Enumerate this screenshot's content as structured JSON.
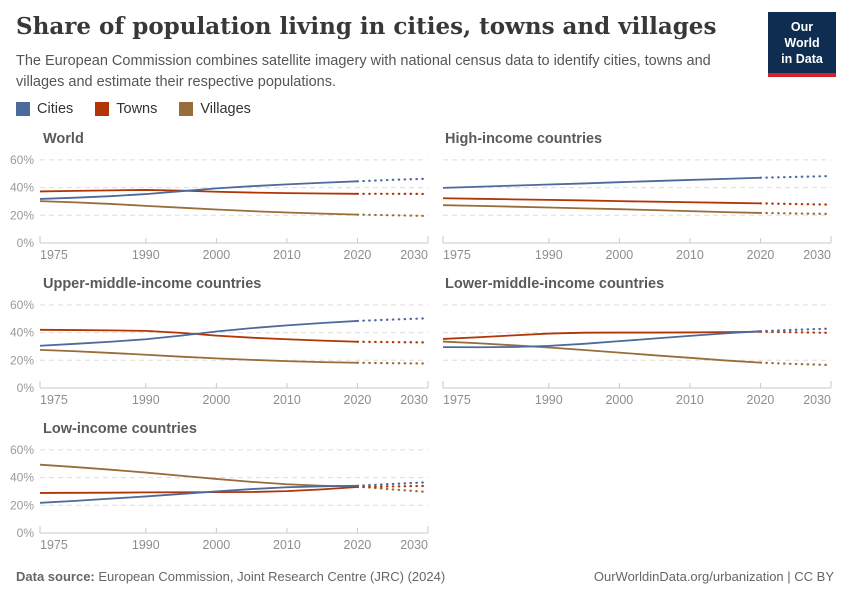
{
  "header": {
    "title": "Share of population living in cities, towns and villages",
    "subtitle": "The European Commission combines satellite imagery with national census data to identify cities, towns and villages and estimate their respective populations.",
    "logo": {
      "line1": "Our World",
      "line2": "in Data",
      "bg_color": "#0E2D51",
      "accent_color": "#D0232E"
    }
  },
  "legend": {
    "position": "top",
    "items": [
      {
        "label": "Cities",
        "color": "#4C6A9C"
      },
      {
        "label": "Towns",
        "color": "#B13507"
      },
      {
        "label": "Villages",
        "color": "#996D39"
      }
    ]
  },
  "chart_data": [
    {
      "type": "line",
      "title": "World",
      "x": [
        1975,
        1980,
        1985,
        1990,
        1995,
        2000,
        2005,
        2010,
        2015,
        2020
      ],
      "projection_x": [
        2020,
        2025,
        2030
      ],
      "x_range": [
        1975,
        2030
      ],
      "y_range": [
        0,
        65
      ],
      "grid": "dashed",
      "x_tick_labels": [
        "1975",
        "1990",
        "2000",
        "2010",
        "2020",
        "2030"
      ],
      "x_ticks": [
        1975,
        1990,
        2000,
        2010,
        2020,
        2030
      ],
      "y_ticks": [
        0,
        20,
        40,
        60
      ],
      "y_tick_labels": [
        "0%",
        "20%",
        "40%",
        "60%"
      ],
      "ylabel": "",
      "xlabel": "",
      "series": [
        {
          "name": "Cities",
          "color": "#4C6A9C",
          "values": [
            31.8,
            32.7,
            33.8,
            35.3,
            37.4,
            39.4,
            41.0,
            42.3,
            43.5,
            44.5
          ],
          "projection": [
            44.5,
            45.6,
            46.4
          ]
        },
        {
          "name": "Towns",
          "color": "#B13507",
          "values": [
            37.2,
            37.6,
            38.0,
            38.3,
            37.8,
            37.0,
            36.4,
            36.0,
            35.7,
            35.5
          ],
          "projection": [
            35.5,
            35.5,
            35.4
          ]
        },
        {
          "name": "Villages",
          "color": "#996D39",
          "values": [
            30.2,
            29.3,
            28.2,
            26.8,
            25.5,
            24.2,
            23.0,
            22.0,
            21.2,
            20.5
          ],
          "projection": [
            20.5,
            20.0,
            19.5
          ]
        }
      ]
    },
    {
      "type": "line",
      "title": "High-income countries",
      "x": [
        1975,
        1980,
        1985,
        1990,
        1995,
        2000,
        2005,
        2010,
        2015,
        2020
      ],
      "projection_x": [
        2020,
        2025,
        2030
      ],
      "x_range": [
        1975,
        2030
      ],
      "y_range": [
        0,
        65
      ],
      "grid": "dashed",
      "x_tick_labels": [
        "1975",
        "1990",
        "2000",
        "2010",
        "2020",
        "2030"
      ],
      "x_ticks": [
        1975,
        1990,
        2000,
        2010,
        2020,
        2030
      ],
      "y_ticks": [
        0,
        20,
        40,
        60
      ],
      "y_tick_labels": [
        "0%",
        "20%",
        "40%",
        "60%"
      ],
      "ylabel": "",
      "xlabel": "",
      "series": [
        {
          "name": "Cities",
          "color": "#4C6A9C",
          "values": [
            39.8,
            40.6,
            41.4,
            42.2,
            43.0,
            43.9,
            44.7,
            45.5,
            46.3,
            47.1
          ],
          "projection": [
            47.1,
            47.7,
            48.3
          ]
        },
        {
          "name": "Towns",
          "color": "#B13507",
          "values": [
            32.3,
            31.9,
            31.5,
            31.1,
            30.7,
            30.2,
            29.8,
            29.4,
            29.0,
            28.6
          ],
          "projection": [
            28.6,
            28.1,
            27.7
          ]
        },
        {
          "name": "Villages",
          "color": "#996D39",
          "values": [
            27.3,
            26.8,
            26.2,
            25.6,
            25.0,
            24.4,
            23.7,
            23.0,
            22.3,
            21.7
          ],
          "projection": [
            21.7,
            21.3,
            21.0
          ]
        }
      ]
    },
    {
      "type": "line",
      "title": "Upper-middle-income countries",
      "x": [
        1975,
        1980,
        1985,
        1990,
        1995,
        2000,
        2005,
        2010,
        2015,
        2020
      ],
      "projection_x": [
        2020,
        2025,
        2030
      ],
      "x_range": [
        1975,
        2030
      ],
      "y_range": [
        0,
        65
      ],
      "grid": "dashed",
      "x_tick_labels": [
        "1975",
        "1990",
        "2000",
        "2010",
        "2020",
        "2030"
      ],
      "x_ticks": [
        1975,
        1990,
        2000,
        2010,
        2020,
        2030
      ],
      "y_ticks": [
        0,
        20,
        40,
        60
      ],
      "y_tick_labels": [
        "0%",
        "20%",
        "40%",
        "60%"
      ],
      "ylabel": "",
      "xlabel": "",
      "series": [
        {
          "name": "Cities",
          "color": "#4C6A9C",
          "values": [
            30.5,
            31.9,
            33.4,
            35.2,
            37.8,
            40.8,
            43.2,
            45.2,
            46.9,
            48.4
          ],
          "projection": [
            48.4,
            49.4,
            50.3
          ]
        },
        {
          "name": "Towns",
          "color": "#B13507",
          "values": [
            42.0,
            41.8,
            41.6,
            41.2,
            39.8,
            37.8,
            36.3,
            35.2,
            34.2,
            33.4
          ],
          "projection": [
            33.4,
            33.1,
            32.9
          ]
        },
        {
          "name": "Villages",
          "color": "#996D39",
          "values": [
            27.5,
            26.5,
            25.3,
            24.0,
            22.6,
            21.4,
            20.3,
            19.4,
            18.7,
            18.2
          ],
          "projection": [
            18.2,
            17.9,
            17.7
          ]
        }
      ]
    },
    {
      "type": "line",
      "title": "Lower-middle-income countries",
      "x": [
        1975,
        1980,
        1985,
        1990,
        1995,
        2000,
        2005,
        2010,
        2015,
        2020
      ],
      "projection_x": [
        2020,
        2025,
        2030
      ],
      "x_range": [
        1975,
        2030
      ],
      "y_range": [
        0,
        65
      ],
      "grid": "dashed",
      "x_tick_labels": [
        "1975",
        "1990",
        "2000",
        "2010",
        "2020",
        "2030"
      ],
      "x_ticks": [
        1975,
        1990,
        2000,
        2010,
        2020,
        2030
      ],
      "y_ticks": [
        0,
        20,
        40,
        60
      ],
      "y_tick_labels": [
        "0%",
        "20%",
        "40%",
        "60%"
      ],
      "ylabel": "",
      "xlabel": "",
      "series": [
        {
          "name": "Cities",
          "color": "#4C6A9C",
          "values": [
            29.5,
            29.4,
            29.6,
            30.4,
            31.9,
            33.8,
            35.7,
            37.6,
            39.4,
            41.0
          ],
          "projection": [
            41.0,
            42.0,
            42.9
          ]
        },
        {
          "name": "Towns",
          "color": "#B13507",
          "values": [
            35.4,
            36.6,
            38.0,
            39.3,
            39.9,
            40.0,
            40.0,
            40.1,
            40.3,
            40.6
          ],
          "projection": [
            40.6,
            40.2,
            39.8
          ]
        },
        {
          "name": "Villages",
          "color": "#996D39",
          "values": [
            33.5,
            32.3,
            30.8,
            29.2,
            27.4,
            25.5,
            23.6,
            21.8,
            19.9,
            18.3
          ],
          "projection": [
            18.3,
            17.3,
            16.6
          ]
        }
      ]
    },
    {
      "type": "line",
      "title": "Low-income countries",
      "x": [
        1975,
        1980,
        1985,
        1990,
        1995,
        2000,
        2005,
        2010,
        2015,
        2020
      ],
      "projection_x": [
        2020,
        2025,
        2030
      ],
      "x_range": [
        1975,
        2030
      ],
      "y_range": [
        0,
        65
      ],
      "grid": "dashed",
      "x_tick_labels": [
        "1975",
        "1990",
        "2000",
        "2010",
        "2020",
        "2030"
      ],
      "x_ticks": [
        1975,
        1990,
        2000,
        2010,
        2020,
        2030
      ],
      "y_ticks": [
        0,
        20,
        40,
        60
      ],
      "y_tick_labels": [
        "0%",
        "20%",
        "40%",
        "60%"
      ],
      "ylabel": "",
      "xlabel": "",
      "series": [
        {
          "name": "Cities",
          "color": "#4C6A9C",
          "values": [
            21.8,
            23.2,
            24.8,
            26.4,
            28.2,
            30.0,
            31.7,
            33.0,
            33.7,
            34.1
          ],
          "projection": [
            34.1,
            35.4,
            36.6
          ]
        },
        {
          "name": "Towns",
          "color": "#B13507",
          "values": [
            28.9,
            29.0,
            29.1,
            29.3,
            29.4,
            29.5,
            29.6,
            30.2,
            31.5,
            33.2
          ],
          "projection": [
            33.2,
            33.6,
            34.0
          ]
        },
        {
          "name": "Villages",
          "color": "#996D39",
          "values": [
            49.3,
            47.6,
            45.7,
            43.6,
            41.3,
            39.0,
            36.9,
            35.2,
            34.1,
            33.5
          ],
          "projection": [
            33.5,
            31.4,
            29.6
          ]
        }
      ]
    }
  ],
  "footer": {
    "source_label": "Data source:",
    "source_text": " European Commission, Joint Research Centre (JRC) (2024)",
    "credit": "OurWorldinData.org/urbanization | CC BY"
  }
}
